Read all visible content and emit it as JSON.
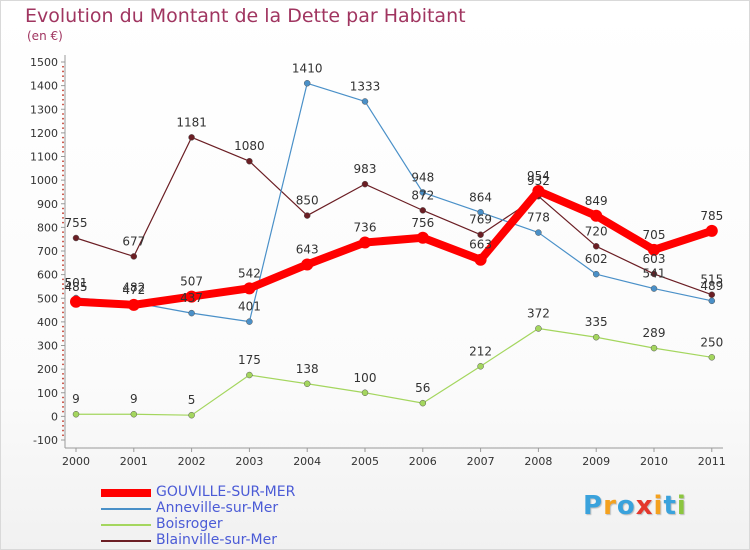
{
  "header": {
    "title": "Evolution du Montant de la Dette par Habitant",
    "subtitle": "(en €)"
  },
  "logo": {
    "text": "Proxiti",
    "colors": [
      "#3aa2dc",
      "#f4a11e",
      "#3aa2dc",
      "#e4382d",
      "#f4a11e",
      "#3aa2dc",
      "#8cc63f"
    ]
  },
  "chart_data": {
    "type": "line",
    "title": "Evolution du Montant de la Dette par Habitant",
    "ylabel": "(en €)",
    "xlabel": "",
    "x": [
      "2000",
      "2001",
      "2002",
      "2003",
      "2004",
      "2005",
      "2006",
      "2007",
      "2008",
      "2009",
      "2010",
      "2011"
    ],
    "ylim": [
      -100,
      1500
    ],
    "yticks": [
      -100,
      0,
      100,
      200,
      300,
      400,
      500,
      600,
      700,
      800,
      900,
      1000,
      1100,
      1200,
      1300,
      1400,
      1500
    ],
    "grid": false,
    "legend_position": "bottom-left",
    "series": [
      {
        "name": "GOUVILLE-SUR-MER",
        "color": "#ff0000",
        "values": [
          485,
          472,
          507,
          542,
          643,
          736,
          756,
          663,
          954,
          849,
          705,
          785
        ],
        "labels": [
          "485",
          "472",
          "507",
          "542",
          "643",
          "736",
          "756",
          "663",
          "954",
          "849",
          "705",
          "785"
        ]
      },
      {
        "name": "Anneville-sur-Mer",
        "color": "#4a90c8",
        "values": [
          501,
          482,
          437,
          401,
          1410,
          1333,
          948,
          864,
          778,
          602,
          541,
          489
        ],
        "labels": [
          "501",
          "482",
          "437",
          "401",
          "1410",
          "1333",
          "948",
          "864",
          "778",
          "602",
          "541",
          "489"
        ]
      },
      {
        "name": "Boisroger",
        "color": "#a4d65e",
        "values": [
          9,
          9,
          5,
          175,
          138,
          100,
          56,
          212,
          372,
          335,
          289,
          250
        ],
        "labels": [
          "9",
          "9",
          "5",
          "175",
          "138",
          "100",
          "56",
          "212",
          "372",
          "335",
          "289",
          "250"
        ]
      },
      {
        "name": "Blainville-sur-Mer",
        "color": "#6b1e24",
        "values": [
          755,
          677,
          1181,
          1080,
          850,
          983,
          872,
          769,
          932,
          720,
          603,
          515
        ],
        "labels": [
          "755",
          "677",
          "1181",
          "1080",
          "850",
          "983",
          "872",
          "769",
          "932",
          "720",
          "603",
          "515"
        ]
      }
    ]
  }
}
